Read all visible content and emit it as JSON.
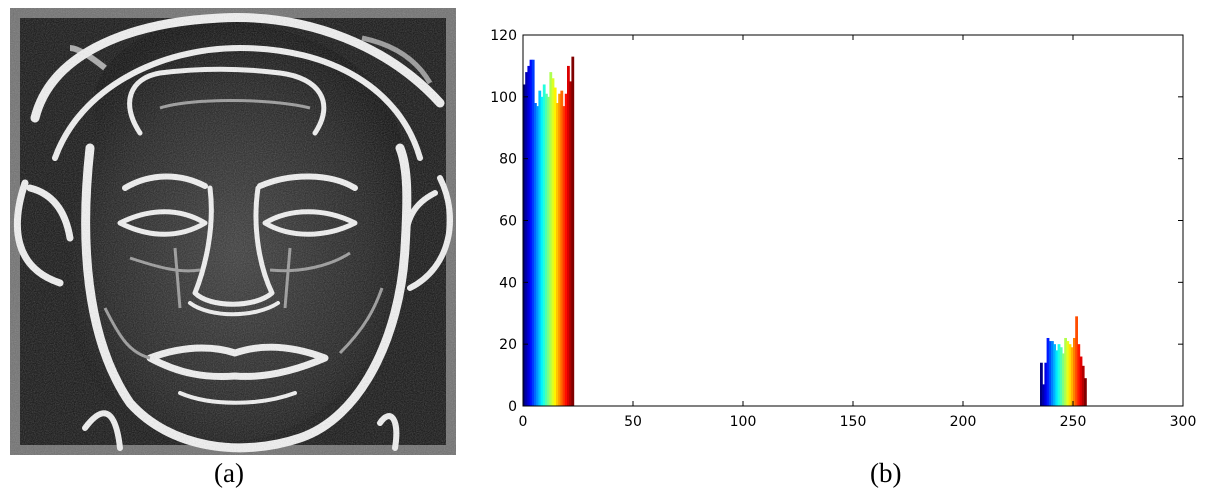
{
  "captions": {
    "a": "(a)",
    "b": "(b)"
  },
  "chart_data": {
    "type": "bar",
    "title": "",
    "xlabel": "",
    "ylabel": "",
    "xlim": [
      0,
      300
    ],
    "ylim": [
      0,
      120
    ],
    "xticks": [
      0,
      50,
      100,
      150,
      200,
      250,
      300
    ],
    "yticks": [
      0,
      20,
      40,
      60,
      80,
      100,
      120
    ],
    "grid": false,
    "colormap": "jet",
    "x": [
      0,
      1,
      2,
      3,
      4,
      5,
      6,
      7,
      8,
      9,
      10,
      11,
      12,
      13,
      14,
      15,
      16,
      17,
      18,
      19,
      20,
      21,
      22,
      235,
      236,
      237,
      238,
      239,
      240,
      241,
      242,
      243,
      244,
      245,
      246,
      247,
      248,
      249,
      250,
      251,
      252,
      253,
      254,
      255
    ],
    "values": [
      104,
      108,
      110,
      112,
      112,
      98,
      97,
      102,
      100,
      104,
      101,
      100,
      108,
      106,
      103,
      98,
      101,
      102,
      97,
      101,
      110,
      105,
      113,
      14,
      7,
      14,
      22,
      21,
      21,
      20,
      18,
      20,
      19,
      17,
      22,
      21,
      20,
      19,
      22,
      29,
      20,
      16,
      13,
      9
    ]
  }
}
